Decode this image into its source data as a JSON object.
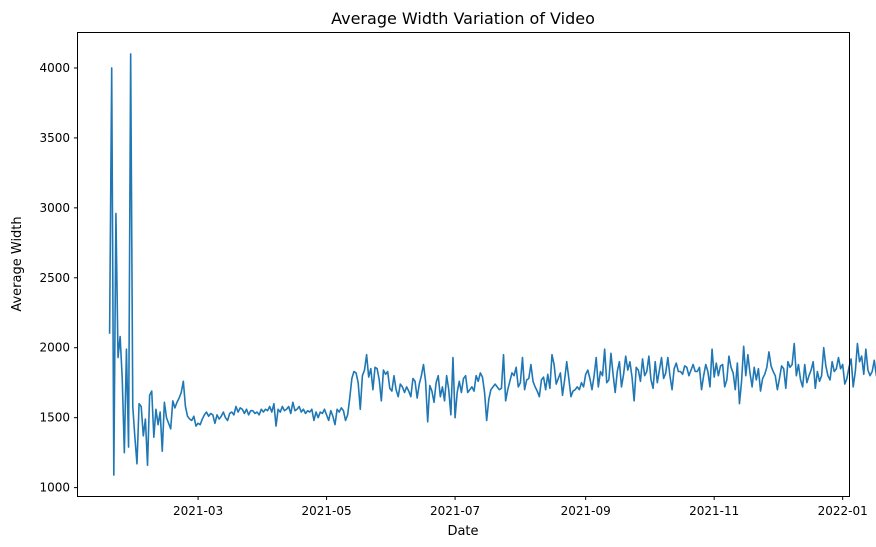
{
  "chart_data": {
    "type": "line",
    "title": "Average Width Variation of Video",
    "xlabel": "Date",
    "ylabel": "Average Width",
    "x_range": [
      "2021-01-03",
      "2022-01-04"
    ],
    "ylim": [
      940,
      4250
    ],
    "x_ticks": [
      "2021-03",
      "2021-05",
      "2021-07",
      "2021-09",
      "2021-11",
      "2022-01"
    ],
    "y_ticks": [
      1000,
      1500,
      2000,
      2500,
      3000,
      3500,
      4000
    ],
    "grid": false,
    "series": [
      {
        "color": "#1f77b4",
        "x_start": "2021-01-18",
        "x_step_days": 1,
        "values": [
          2100,
          4000,
          1090,
          2960,
          1930,
          2080,
          1780,
          1250,
          1990,
          1290,
          4100,
          1580,
          1360,
          1170,
          1600,
          1580,
          1370,
          1490,
          1160,
          1660,
          1690,
          1360,
          1560,
          1450,
          1540,
          1260,
          1610,
          1500,
          1460,
          1420,
          1620,
          1570,
          1610,
          1640,
          1680,
          1760,
          1580,
          1510,
          1490,
          1480,
          1510,
          1440,
          1460,
          1450,
          1490,
          1520,
          1540,
          1510,
          1530,
          1520,
          1460,
          1520,
          1490,
          1510,
          1540,
          1500,
          1480,
          1530,
          1540,
          1520,
          1580,
          1540,
          1570,
          1560,
          1530,
          1560,
          1520,
          1550,
          1550,
          1530,
          1540,
          1520,
          1560,
          1540,
          1560,
          1550,
          1580,
          1540,
          1600,
          1440,
          1560,
          1540,
          1580,
          1550,
          1560,
          1580,
          1530,
          1610,
          1550,
          1560,
          1580,
          1540,
          1560,
          1530,
          1550,
          1540,
          1560,
          1480,
          1540,
          1500,
          1540,
          1530,
          1560,
          1520,
          1480,
          1550,
          1510,
          1450,
          1560,
          1540,
          1570,
          1550,
          1480,
          1520,
          1640,
          1780,
          1830,
          1820,
          1750,
          1560,
          1800,
          1840,
          1950,
          1790,
          1850,
          1700,
          1860,
          1850,
          1770,
          1620,
          1840,
          1810,
          1830,
          1710,
          1690,
          1800,
          1700,
          1650,
          1740,
          1720,
          1680,
          1720,
          1690,
          1650,
          1780,
          1760,
          1640,
          1740,
          1800,
          1880,
          1760,
          1470,
          1730,
          1690,
          1610,
          1750,
          1800,
          1650,
          1720,
          1620,
          1800,
          1700,
          1520,
          1930,
          1500,
          1680,
          1760,
          1680,
          1780,
          1800,
          1680,
          1700,
          1720,
          1690,
          1800,
          1760,
          1820,
          1790,
          1680,
          1480,
          1630,
          1700,
          1720,
          1740,
          1720,
          1700,
          1710,
          1950,
          1620,
          1700,
          1760,
          1820,
          1800,
          1860,
          1720,
          1750,
          1930,
          1700,
          1770,
          1780,
          1880,
          1760,
          1720,
          1690,
          1650,
          1770,
          1790,
          1700,
          1810,
          1710,
          1950,
          1880,
          1740,
          1780,
          1820,
          1660,
          1770,
          1900,
          1780,
          1650,
          1690,
          1700,
          1720,
          1700,
          1750,
          1720,
          1810,
          1840,
          1780,
          1700,
          1800,
          1930,
          1720,
          1830,
          1800,
          1990,
          1750,
          1770,
          1960,
          1810,
          1680,
          1830,
          1900,
          1720,
          1810,
          1940,
          1840,
          1900,
          1790,
          1620,
          1860,
          1840,
          1760,
          1920,
          1800,
          1830,
          1940,
          1770,
          1710,
          1900,
          1750,
          1840,
          1930,
          1780,
          1820,
          1930,
          1800,
          1700,
          1850,
          1890,
          1830,
          1830,
          1810,
          1870,
          1860,
          1800,
          1840,
          1880,
          1830,
          1830,
          1860,
          1700,
          1800,
          1880,
          1830,
          1720,
          1990,
          1790,
          1890,
          1800,
          1870,
          1880,
          1720,
          1770,
          1940,
          1860,
          1820,
          1700,
          1890,
          1600,
          1760,
          2010,
          1800,
          1950,
          1820,
          1720,
          1860,
          1770,
          1850,
          1690,
          1780,
          1810,
          1860,
          1970,
          1870,
          1830,
          1800,
          1700,
          1780,
          1870,
          1850,
          1710,
          1900,
          1860,
          1880,
          2030,
          1800,
          1880,
          1770,
          1720,
          1880,
          1750,
          1800,
          1840,
          1900,
          1710,
          1830,
          1760,
          1800,
          2000,
          1870,
          1800,
          1770,
          1900,
          1830,
          1850,
          1930,
          1850,
          1880,
          1740,
          1780,
          1860,
          1920,
          1720,
          1830,
          2030,
          1900,
          1940,
          1810,
          1990,
          1840,
          1800,
          1830,
          1910,
          1800,
          1770,
          1870,
          1820,
          1850,
          1840,
          1830,
          1880,
          1740,
          1860,
          1890,
          1800,
          1930,
          1870,
          1770,
          1840,
          1860,
          1990
        ]
      }
    ]
  }
}
